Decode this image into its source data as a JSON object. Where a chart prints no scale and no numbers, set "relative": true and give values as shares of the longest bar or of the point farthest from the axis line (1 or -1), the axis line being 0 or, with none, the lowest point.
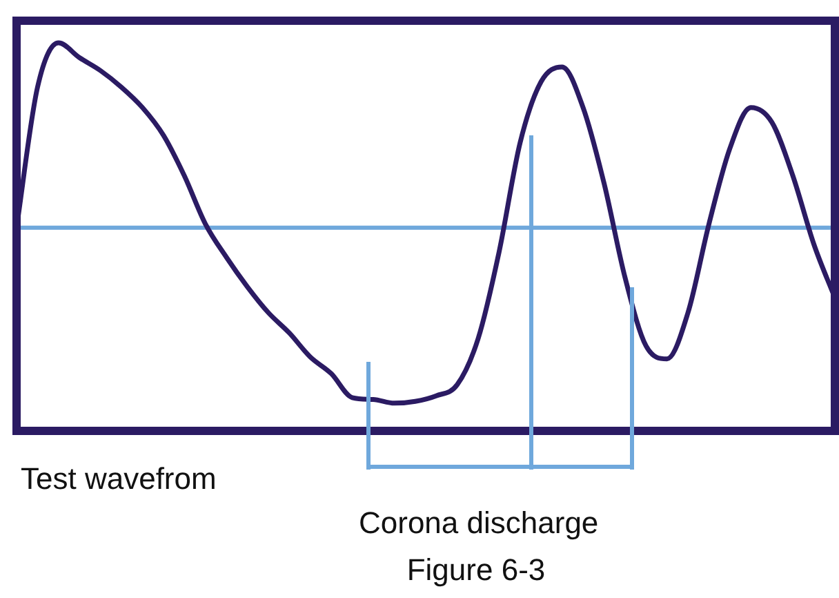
{
  "chart_data": {
    "type": "line",
    "relative": true,
    "color": "#2b1b63",
    "categories": [
      null,
      null,
      null,
      null,
      null,
      null,
      null,
      null,
      null,
      null,
      null,
      null,
      null,
      null,
      null,
      null,
      null,
      null,
      null,
      null,
      null,
      null,
      null,
      null,
      null,
      null,
      null,
      null,
      null,
      null,
      null,
      null,
      null,
      null,
      null,
      null,
      null,
      null,
      null,
      null
    ],
    "values": [
      0,
      0.76,
      1,
      0.92,
      0.85,
      0.76,
      0.65,
      0.5,
      0.28,
      0.02,
      -0.16,
      -0.32,
      -0.46,
      -0.57,
      -0.7,
      -0.79,
      -0.92,
      -0.93,
      -0.95,
      -0.94,
      -0.91,
      -0.85,
      -0.6,
      -0.13,
      0.46,
      0.79,
      0.87,
      0.65,
      0.24,
      -0.27,
      -0.64,
      -0.71,
      -0.46,
      0.02,
      0.43,
      0.65,
      0.57,
      0.28,
      -0.09,
      -0.38
    ],
    "ref_lines": [
      {
        "axis": "y",
        "value": 0,
        "color": "#6fa8dc"
      }
    ],
    "annotations": [
      "Test wavefrom",
      "Corona discharge",
      "Figure 6-3"
    ],
    "marker": "none",
    "legend": false
  }
}
